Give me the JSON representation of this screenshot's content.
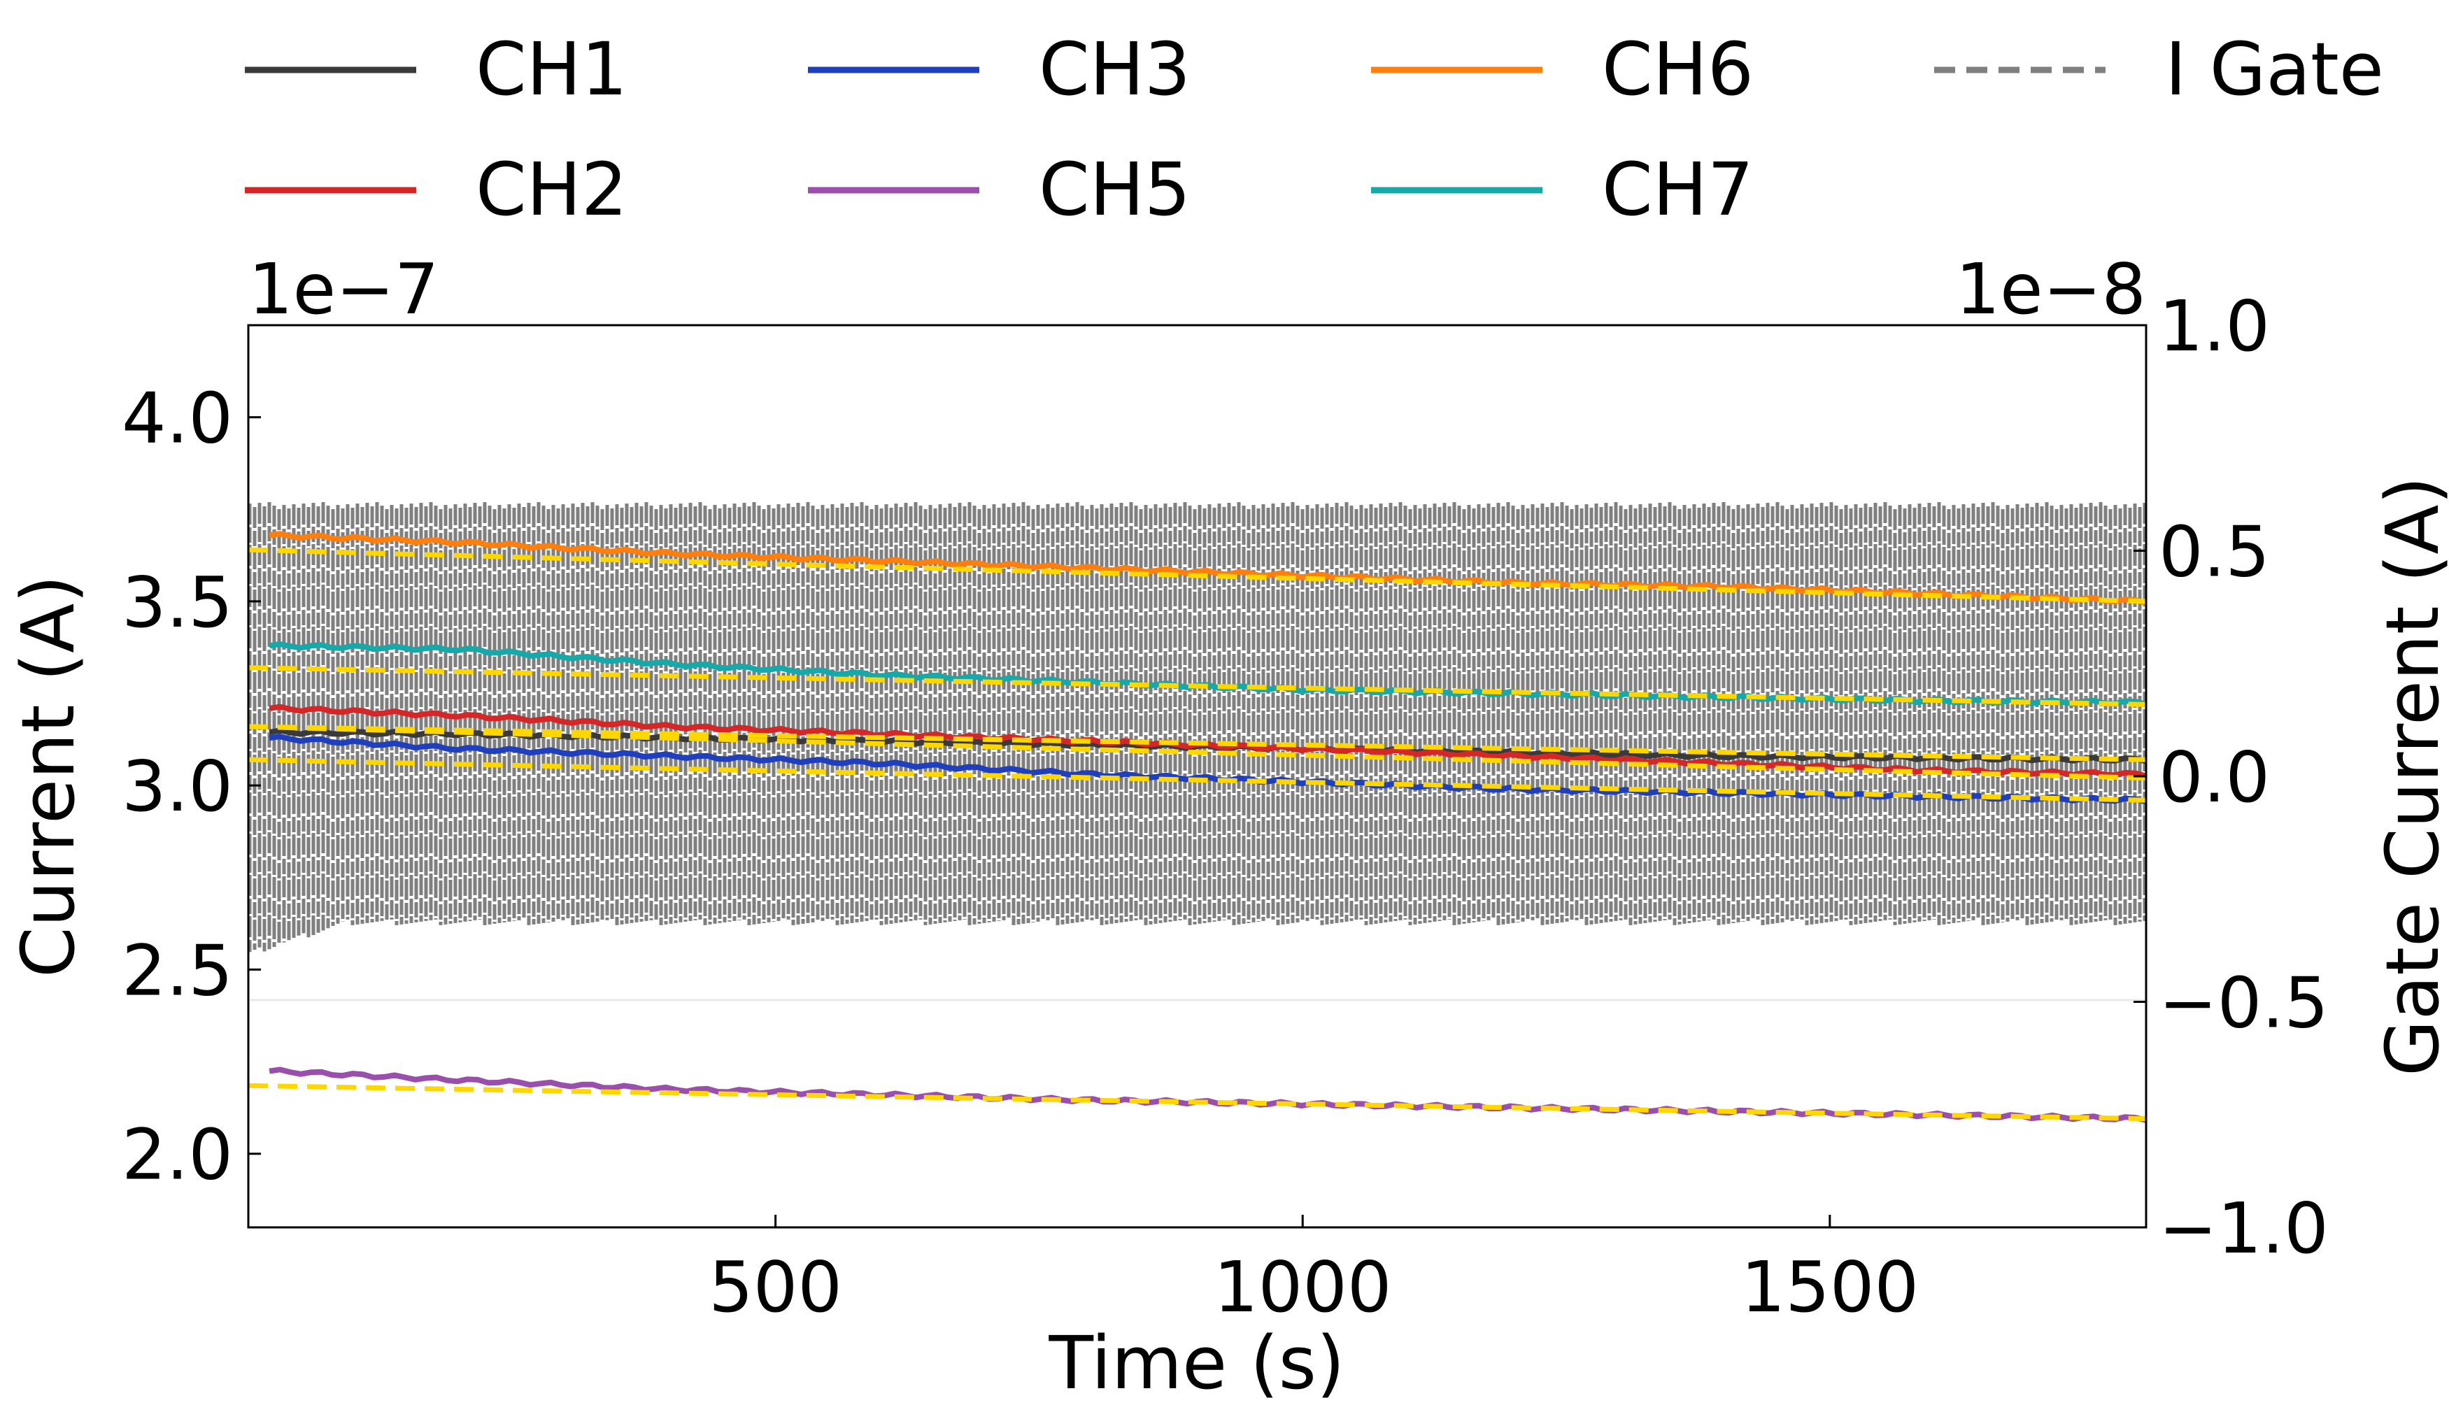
{
  "chart_data": {
    "type": "line",
    "xlabel": "Time (s)",
    "ylabel": "Current (A)",
    "y2label": "Gate Current (A)",
    "left_multiplier": "1e−7",
    "right_multiplier": "1e−8",
    "xlim": [
      0,
      1800
    ],
    "ylim": [
      1.8,
      4.25
    ],
    "y2lim": [
      -1.0,
      1.0
    ],
    "xticks": [
      {
        "value": 500,
        "label": "500"
      },
      {
        "value": 1000,
        "label": "1000"
      },
      {
        "value": 1500,
        "label": "1500"
      }
    ],
    "yticks": [
      {
        "value": 2.0,
        "label": "2.0"
      },
      {
        "value": 2.5,
        "label": "2.5"
      },
      {
        "value": 3.0,
        "label": "3.0"
      },
      {
        "value": 3.5,
        "label": "3.5"
      },
      {
        "value": 4.0,
        "label": "4.0"
      }
    ],
    "y2ticks": [
      {
        "value": -1.0,
        "label": "−1.0"
      },
      {
        "value": -0.5,
        "label": "−0.5"
      },
      {
        "value": 0.0,
        "label": "0.0"
      },
      {
        "value": 0.5,
        "label": "0.5"
      },
      {
        "value": 1.0,
        "label": "1.0"
      }
    ],
    "grid": false,
    "legend_position": "top",
    "fit_line_color": "#FFD700",
    "series": [
      {
        "name": "CH1",
        "color": "#3a3a3a",
        "axis": "left",
        "x": [
          20,
          200,
          400,
          600,
          800,
          1000,
          1200,
          1400,
          1600,
          1800
        ],
        "y": [
          3.145,
          3.14,
          3.13,
          3.12,
          3.11,
          3.1,
          3.09,
          3.08,
          3.075,
          3.07
        ],
        "fit": [
          3.16,
          3.07
        ]
      },
      {
        "name": "CH2",
        "color": "#d62728",
        "axis": "left",
        "x": [
          20,
          200,
          400,
          600,
          800,
          1000,
          1200,
          1400,
          1600,
          1800
        ],
        "y": [
          3.21,
          3.19,
          3.16,
          3.14,
          3.12,
          3.1,
          3.08,
          3.06,
          3.04,
          3.03
        ],
        "fit": [
          3.16,
          3.02
        ]
      },
      {
        "name": "CH3",
        "color": "#1f3fbf",
        "axis": "left",
        "x": [
          20,
          200,
          400,
          600,
          800,
          1000,
          1200,
          1400,
          1600,
          1800
        ],
        "y": [
          3.13,
          3.1,
          3.08,
          3.06,
          3.03,
          3.01,
          2.99,
          2.98,
          2.97,
          2.96
        ],
        "fit": [
          3.07,
          2.96
        ]
      },
      {
        "name": "CH5",
        "color": "#9b4fad",
        "axis": "left",
        "x": [
          20,
          200,
          400,
          600,
          800,
          1000,
          1200,
          1400,
          1600,
          1800
        ],
        "y": [
          2.225,
          2.2,
          2.175,
          2.16,
          2.145,
          2.135,
          2.125,
          2.115,
          2.105,
          2.095
        ],
        "fit": [
          2.185,
          2.095
        ]
      },
      {
        "name": "CH6",
        "color": "#ff7f0e",
        "axis": "left",
        "x": [
          20,
          200,
          400,
          600,
          800,
          1000,
          1200,
          1400,
          1600,
          1800
        ],
        "y": [
          3.68,
          3.66,
          3.63,
          3.61,
          3.59,
          3.57,
          3.55,
          3.54,
          3.52,
          3.5
        ],
        "fit": [
          3.64,
          3.5
        ]
      },
      {
        "name": "CH7",
        "color": "#17a9a9",
        "axis": "left",
        "x": [
          20,
          200,
          400,
          600,
          800,
          1000,
          1200,
          1400,
          1600,
          1800
        ],
        "y": [
          3.38,
          3.37,
          3.33,
          3.3,
          3.28,
          3.26,
          3.25,
          3.24,
          3.23,
          3.225
        ],
        "fit": [
          3.32,
          3.22
        ]
      },
      {
        "name": "I Gate",
        "color": "#7f7f7f",
        "axis": "right",
        "style": "dashed",
        "band_upper": 0.6,
        "band_lower": -0.33
      }
    ]
  }
}
